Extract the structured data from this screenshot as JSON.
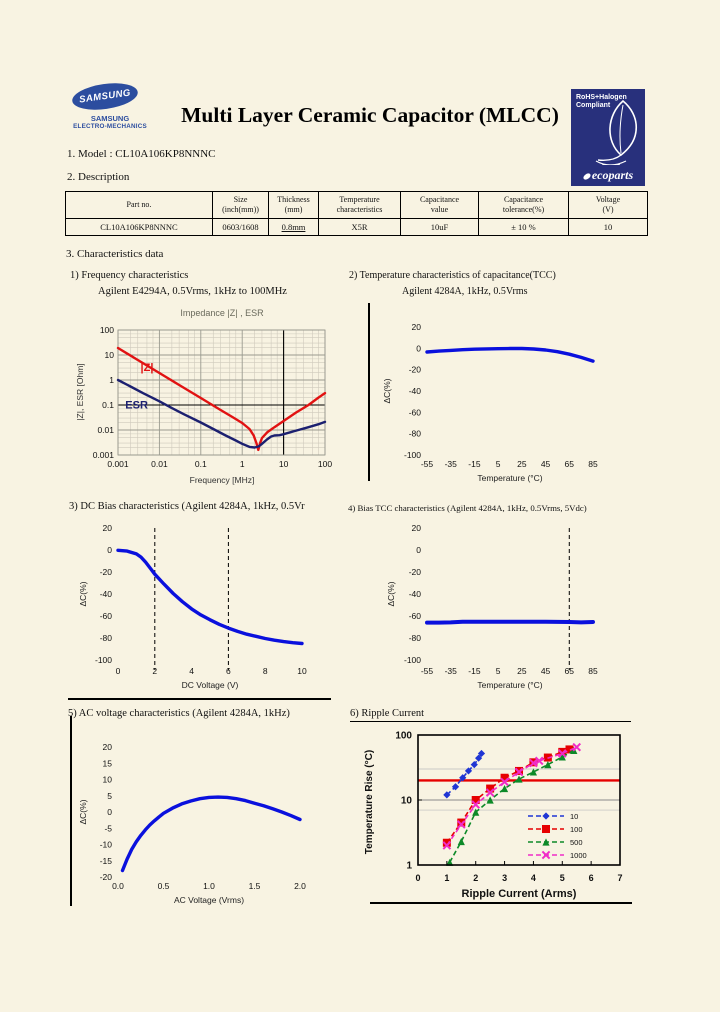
{
  "header": {
    "logo_oval": "SAMSUNG",
    "logo_line1": "SAMSUNG",
    "logo_line2": "ELECTRO-MECHANICS",
    "title": "Multi Layer Ceramic Capacitor (MLCC)",
    "badge": {
      "line1": "RoHS+Halogen",
      "line2": "Compliant",
      "brand": "ecoparts"
    }
  },
  "model_line": "1. Model : CL10A106KP8NNNC",
  "description_heading": "2. Description",
  "characteristics_heading": "3. Characteristics data",
  "table": {
    "headers": [
      [
        "Part no."
      ],
      [
        "Size",
        "(inch(mm))"
      ],
      [
        "Thickness",
        "(mm)"
      ],
      [
        "Temperature",
        "characteristics"
      ],
      [
        "Capacitance",
        "value"
      ],
      [
        "Capacitance",
        "tolerance(%)"
      ],
      [
        "Voltage",
        "(V)"
      ]
    ],
    "row": [
      "CL10A106KP8NNNC",
      "0603/1608",
      "0.8mm",
      "X5R",
      "10uF",
      "± 10 %",
      "10"
    ],
    "underline_cells": [
      2
    ]
  },
  "sections": {
    "s1": {
      "title": "1) Frequency characteristics",
      "subtitle": "Agilent E4294A, 0.5Vrms, 1kHz to 100MHz"
    },
    "s2": {
      "title": "2) Temperature characteristics of capacitance(TCC)",
      "subtitle": "Agilent 4284A, 1kHz, 0.5Vrms"
    },
    "s3": {
      "title": "3) DC Bias characteristics (Agilent 4284A, 1kHz, 0.5Vr"
    },
    "s4": {
      "title": "4) Bias TCC characteristics (Agilent 4284A, 1kHz, 0.5Vrms, 5Vdc)"
    },
    "s5": {
      "title": "5) AC voltage characteristics (Agilent 4284A, 1kHz)"
    },
    "s6": {
      "title": "6) Ripple Current"
    }
  },
  "colors": {
    "samsung_blue": "#2c4d9f",
    "badge_navy": "#28307c",
    "curve_blue": "#0a10dd",
    "esr_navy": "#1c2070",
    "red": "#e11212",
    "green": "#0d8a28",
    "magenta": "#f02cc8",
    "grid_gray": "#9a9a8f",
    "page_bg": "#f8f3e2"
  },
  "chart_data": [
    {
      "id": "frequency",
      "type": "line",
      "title": "Impedance |Z| ,  ESR",
      "xlabel": "Frequency [MHz]",
      "ylabel": "|Z|, ESR [Ohm]",
      "xscale": "log",
      "yscale": "log",
      "xlim": [
        0.001,
        100
      ],
      "ylim": [
        0.001,
        100
      ],
      "xticks": [
        "0.001",
        "0.01",
        "0.1",
        "1",
        "10",
        "100"
      ],
      "yticks": [
        "100",
        "10",
        "1",
        "0.1",
        "0.01",
        "0.001"
      ],
      "emphasis": {
        "x": 10,
        "y": 0.1
      },
      "series": [
        {
          "name": "|Z|",
          "color": "#e11212",
          "points": [
            [
              0.001,
              19
            ],
            [
              0.003,
              6.3
            ],
            [
              0.01,
              1.9
            ],
            [
              0.03,
              0.63
            ],
            [
              0.1,
              0.19
            ],
            [
              0.3,
              0.063
            ],
            [
              0.6,
              0.032
            ],
            [
              1,
              0.019
            ],
            [
              1.5,
              0.011
            ],
            [
              1.9,
              0.006
            ],
            [
              2.2,
              0.003
            ],
            [
              2.45,
              0.0016
            ],
            [
              2.7,
              0.003
            ],
            [
              3,
              0.0048
            ],
            [
              4,
              0.008
            ],
            [
              6,
              0.013
            ],
            [
              10,
              0.023
            ],
            [
              20,
              0.05
            ],
            [
              40,
              0.1
            ],
            [
              70,
              0.2
            ],
            [
              100,
              0.3
            ]
          ]
        },
        {
          "name": "ESR",
          "color": "#1c2070",
          "points": [
            [
              0.001,
              1.0
            ],
            [
              0.002,
              0.55
            ],
            [
              0.004,
              0.3
            ],
            [
              0.01,
              0.14
            ],
            [
              0.02,
              0.075
            ],
            [
              0.04,
              0.042
            ],
            [
              0.1,
              0.02
            ],
            [
              0.2,
              0.011
            ],
            [
              0.4,
              0.006
            ],
            [
              0.7,
              0.0038
            ],
            [
              1,
              0.0028
            ],
            [
              1.5,
              0.0021
            ],
            [
              2,
              0.002
            ],
            [
              2.5,
              0.0022
            ],
            [
              3,
              0.0028
            ],
            [
              4,
              0.0042
            ],
            [
              5,
              0.0055
            ],
            [
              6,
              0.006
            ],
            [
              8,
              0.0062
            ],
            [
              10,
              0.0068
            ],
            [
              20,
              0.0095
            ],
            [
              40,
              0.013
            ],
            [
              70,
              0.017
            ],
            [
              100,
              0.021
            ]
          ]
        }
      ],
      "labels": [
        {
          "text": "|Z|",
          "color": "#e11212",
          "x": 0.0035,
          "y": 3
        },
        {
          "text": "ESR",
          "color": "#1c2070",
          "x": 0.0015,
          "y": 0.095
        }
      ]
    },
    {
      "id": "tcc",
      "type": "line",
      "xlabel": "Temperature (°C)",
      "ylabel": "ΔC(%)",
      "xlim": [
        -55,
        85
      ],
      "ylim": [
        -100,
        20
      ],
      "xticks": [
        "-55",
        "-35",
        "-15",
        "5",
        "25",
        "45",
        "65",
        "85"
      ],
      "yticks": [
        "20",
        "0",
        "-20",
        "-40",
        "-60",
        "-80",
        "-100"
      ],
      "color": "#0a10dd",
      "points": [
        [
          -55,
          -3.4
        ],
        [
          -45,
          -2.6
        ],
        [
          -35,
          -1.9
        ],
        [
          -25,
          -1.3
        ],
        [
          -15,
          -0.8
        ],
        [
          -5,
          -0.5
        ],
        [
          5,
          -0.3
        ],
        [
          15,
          -0.2
        ],
        [
          25,
          -0.2
        ],
        [
          35,
          -0.6
        ],
        [
          45,
          -1.6
        ],
        [
          55,
          -3.2
        ],
        [
          65,
          -5.5
        ],
        [
          75,
          -8.5
        ],
        [
          85,
          -12
        ]
      ]
    },
    {
      "id": "dc_bias",
      "type": "line",
      "xlabel": "DC Voltage (V)",
      "ylabel": "ΔC(%)",
      "xlim": [
        0,
        10
      ],
      "ylim": [
        -100,
        20
      ],
      "xticks": [
        "0",
        "2",
        "4",
        "6",
        "8",
        "10"
      ],
      "yticks": [
        "20",
        "0",
        "-20",
        "-40",
        "-60",
        "-80",
        "-100"
      ],
      "dashed_x": [
        2,
        6
      ],
      "color": "#0a10dd",
      "points": [
        [
          0,
          -0.3
        ],
        [
          0.5,
          -1
        ],
        [
          1,
          -3.5
        ],
        [
          1.25,
          -6.5
        ],
        [
          1.5,
          -11
        ],
        [
          1.75,
          -16.5
        ],
        [
          2,
          -22
        ],
        [
          2.5,
          -31
        ],
        [
          3,
          -39.5
        ],
        [
          3.5,
          -47
        ],
        [
          4,
          -53.5
        ],
        [
          4.5,
          -59
        ],
        [
          5,
          -63.5
        ],
        [
          5.5,
          -67.5
        ],
        [
          6,
          -71
        ],
        [
          6.5,
          -74
        ],
        [
          7,
          -76.5
        ],
        [
          7.5,
          -78.5
        ],
        [
          8,
          -80.5
        ],
        [
          8.5,
          -82
        ],
        [
          9,
          -83.3
        ],
        [
          9.5,
          -84.3
        ],
        [
          10,
          -85
        ]
      ]
    },
    {
      "id": "bias_tcc",
      "type": "line",
      "xlabel": "Temperature (°C)",
      "ylabel": "ΔC(%)",
      "xlim": [
        -55,
        85
      ],
      "ylim": [
        -100,
        20
      ],
      "xticks": [
        "-55",
        "-35",
        "-15",
        "5",
        "25",
        "45",
        "65",
        "85"
      ],
      "yticks": [
        "20",
        "0",
        "-20",
        "-40",
        "-60",
        "-80",
        "-100"
      ],
      "dashed_x": [
        65
      ],
      "color": "#0a10dd",
      "points": [
        [
          -55,
          -66
        ],
        [
          -45,
          -66
        ],
        [
          -35,
          -65.8
        ],
        [
          -25,
          -65.3
        ],
        [
          -15,
          -65.2
        ],
        [
          -5,
          -65.2
        ],
        [
          5,
          -65.2
        ],
        [
          15,
          -65.2
        ],
        [
          25,
          -65.2
        ],
        [
          35,
          -65.2
        ],
        [
          45,
          -65.2
        ],
        [
          55,
          -65.4
        ],
        [
          65,
          -65.5
        ],
        [
          75,
          -65.8
        ],
        [
          85,
          -65.5
        ]
      ]
    },
    {
      "id": "ac_voltage",
      "type": "line",
      "xlabel": "AC Voltage (Vrms)",
      "ylabel": "ΔC(%)",
      "xlim": [
        0,
        2
      ],
      "ylim": [
        -20,
        20
      ],
      "xticks": [
        "0.0",
        "0.5",
        "1.0",
        "1.5",
        "2.0"
      ],
      "yticks": [
        "20",
        "15",
        "10",
        "5",
        "0",
        "-5",
        "-10",
        "-15",
        "-20"
      ],
      "color": "#0a10dd",
      "points": [
        [
          0.05,
          -18
        ],
        [
          0.1,
          -14.5
        ],
        [
          0.15,
          -11.5
        ],
        [
          0.2,
          -9.2
        ],
        [
          0.25,
          -7.2
        ],
        [
          0.3,
          -5.5
        ],
        [
          0.35,
          -4
        ],
        [
          0.4,
          -2.7
        ],
        [
          0.45,
          -1.5
        ],
        [
          0.5,
          -0.4
        ],
        [
          0.6,
          1.2
        ],
        [
          0.7,
          2.5
        ],
        [
          0.8,
          3.4
        ],
        [
          0.9,
          4.1
        ],
        [
          1,
          4.5
        ],
        [
          1.1,
          4.6
        ],
        [
          1.2,
          4.5
        ],
        [
          1.3,
          4.1
        ],
        [
          1.4,
          3.5
        ],
        [
          1.5,
          2.7
        ],
        [
          1.6,
          1.9
        ],
        [
          1.7,
          1
        ],
        [
          1.8,
          0
        ],
        [
          1.9,
          -1.1
        ],
        [
          2,
          -2.3
        ]
      ]
    },
    {
      "id": "ripple",
      "type": "scatter-line",
      "xlabel": "Ripple Current (Arms)",
      "ylabel": "Temperature Rise (°C)",
      "xscale": "linear",
      "yscale": "log",
      "xlim": [
        0,
        7
      ],
      "ylim": [
        1,
        100
      ],
      "xticks": [
        "0",
        "1",
        "2",
        "3",
        "4",
        "5",
        "6",
        "7"
      ],
      "yticks": [
        "1",
        "10",
        "100"
      ],
      "limit_line_y": 20,
      "ygrid_major": [
        10
      ],
      "ygrid_minor": [
        7,
        30
      ],
      "series": [
        {
          "name": "10",
          "color": "#1f35d4",
          "marker": "diamond",
          "points": [
            [
              1.0,
              12
            ],
            [
              1.3,
              16
            ],
            [
              1.55,
              22
            ],
            [
              1.75,
              28
            ],
            [
              1.95,
              35
            ],
            [
              2.1,
              44
            ],
            [
              2.2,
              52
            ]
          ]
        },
        {
          "name": "100",
          "color": "#e60000",
          "marker": "square",
          "points": [
            [
              1.0,
              2.2
            ],
            [
              1.5,
              4.5
            ],
            [
              2.0,
              10
            ],
            [
              2.5,
              15
            ],
            [
              3.0,
              22
            ],
            [
              3.5,
              28
            ],
            [
              4.0,
              38
            ],
            [
              4.5,
              45
            ],
            [
              5.0,
              55
            ],
            [
              5.25,
              60
            ]
          ]
        },
        {
          "name": "500",
          "color": "#0d8a28",
          "marker": "triangle",
          "points": [
            [
              1.1,
              1.1
            ],
            [
              1.5,
              2.3
            ],
            [
              2.0,
              6.5
            ],
            [
              2.5,
              10
            ],
            [
              3.0,
              15
            ],
            [
              3.5,
              21
            ],
            [
              4.0,
              27
            ],
            [
              4.5,
              35
            ],
            [
              5.0,
              46
            ],
            [
              5.4,
              58
            ]
          ]
        },
        {
          "name": "1000",
          "color": "#f02cc8",
          "marker": "x",
          "points": [
            [
              1.0,
              2.0
            ],
            [
              1.5,
              4.2
            ],
            [
              2.0,
              8.5
            ],
            [
              2.5,
              13
            ],
            [
              3.0,
              19
            ],
            [
              3.5,
              27
            ],
            [
              4.0,
              37
            ],
            [
              4.2,
              40
            ],
            [
              5.0,
              52
            ],
            [
              5.5,
              65
            ]
          ]
        }
      ]
    }
  ]
}
